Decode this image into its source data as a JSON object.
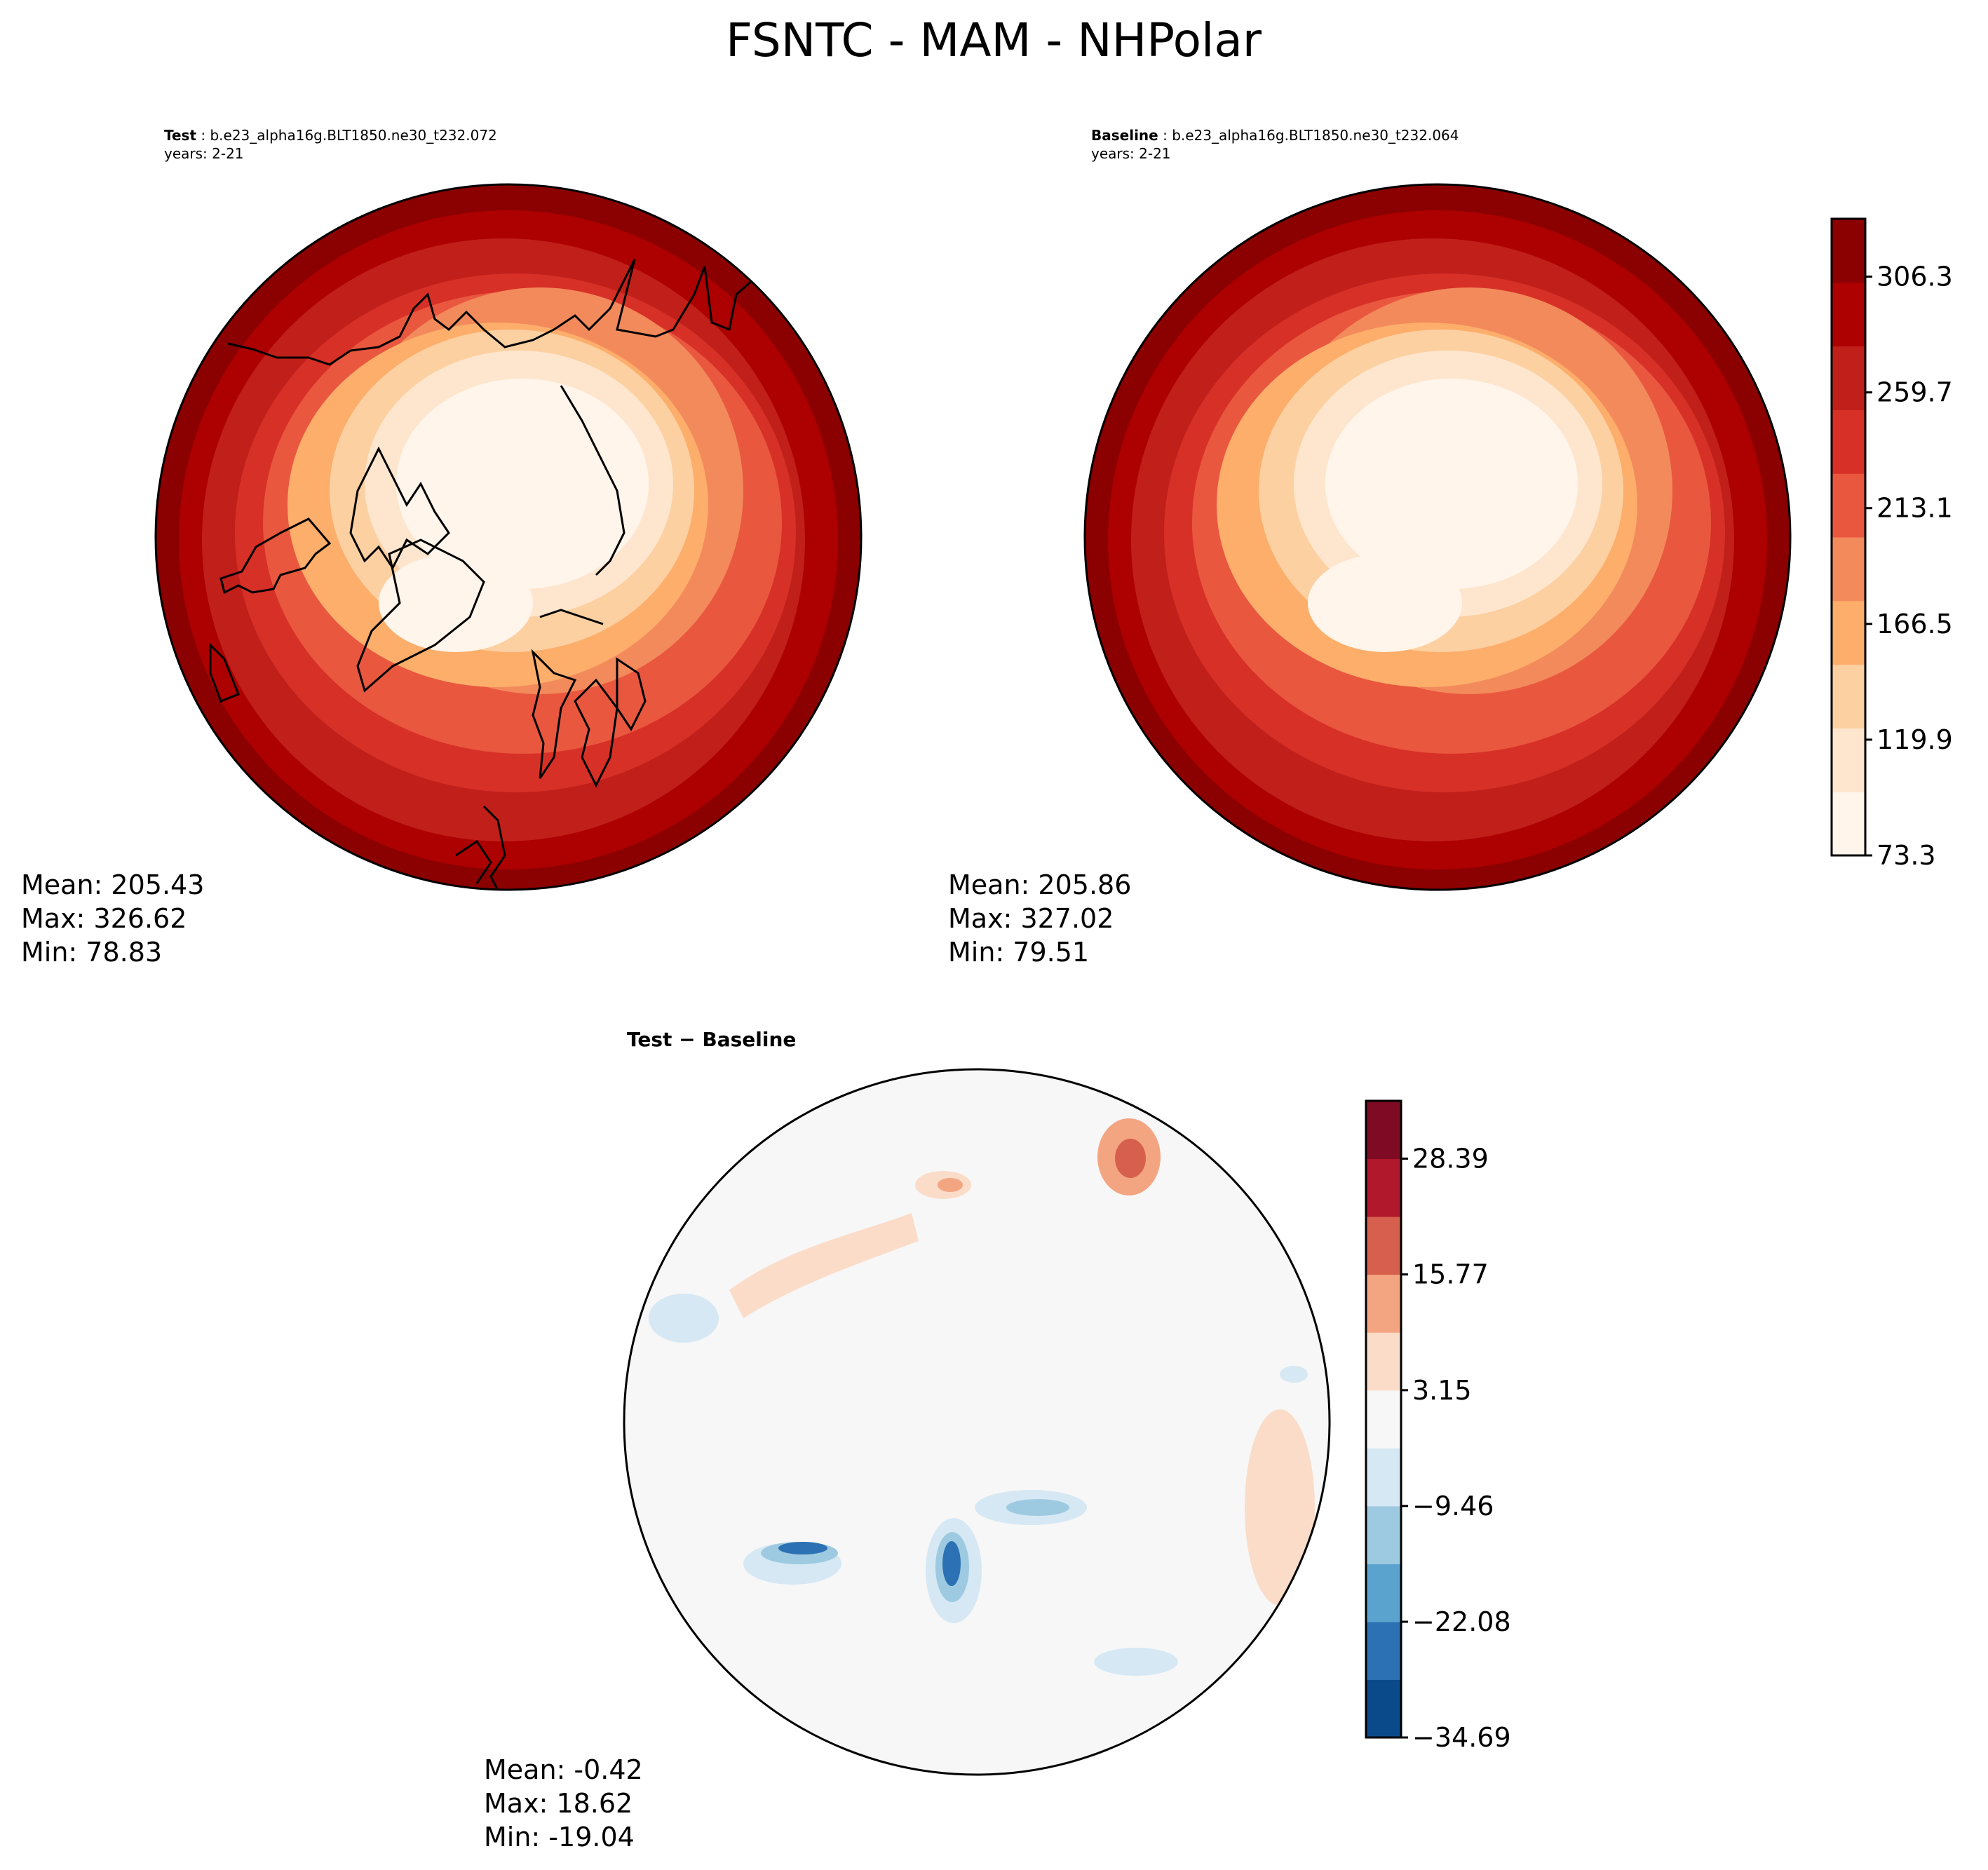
{
  "title": "FSNTC - MAM - NHPolar",
  "chart_data": [
    {
      "type": "heatmap",
      "projection": "north-polar-stereographic",
      "panel": "test",
      "label": "Test",
      "case": "b.e23_alpha16g.BLT1850.ne30_t232.072",
      "years": "years: 2-21",
      "stats": {
        "mean": "Mean: 205.43",
        "max": "Max: 326.62",
        "min": "Min: 78.83"
      }
    },
    {
      "type": "heatmap",
      "projection": "north-polar-stereographic",
      "panel": "baseline",
      "label": "Baseline",
      "case": "b.e23_alpha16g.BLT1850.ne30_t232.064",
      "years": "years: 2-21",
      "stats": {
        "mean": "Mean: 205.86",
        "max": "Max: 327.02",
        "min": "Min: 79.51"
      }
    },
    {
      "type": "heatmap",
      "projection": "north-polar-stereographic",
      "panel": "difference",
      "label": "Test − Baseline",
      "stats": {
        "mean": "Mean: -0.42",
        "max": "Max: 18.62",
        "min": "Min: -19.04"
      }
    }
  ],
  "colorbars": {
    "main": {
      "range": [
        73.3,
        329.6
      ],
      "ticks": [
        "73.3",
        "119.9",
        "166.5",
        "213.1",
        "259.7",
        "306.3"
      ],
      "tick_values": [
        73.3,
        119.9,
        166.5,
        213.1,
        259.7,
        306.3
      ],
      "colors": [
        "#fff5eb",
        "#fee6ce",
        "#fdd0a2",
        "#fdae6b",
        "#f38a5c",
        "#e9573f",
        "#d73027",
        "#c01f1a",
        "#ad0000",
        "#8b0000"
      ]
    },
    "diff": {
      "range": [
        -34.69,
        34.69
      ],
      "ticks": [
        "−34.69",
        "−22.08",
        "−9.46",
        "3.15",
        "15.77",
        "28.39"
      ],
      "tick_values": [
        -34.69,
        -22.08,
        -9.46,
        3.15,
        15.77,
        28.39
      ],
      "colors": [
        "#0b4a8a",
        "#2c71b3",
        "#5ba3cf",
        "#9ecae1",
        "#d6e8f4",
        "#f7f7f7",
        "#fbdcc9",
        "#f3a582",
        "#d6604d",
        "#b2182b",
        "#7e0b23"
      ]
    }
  }
}
